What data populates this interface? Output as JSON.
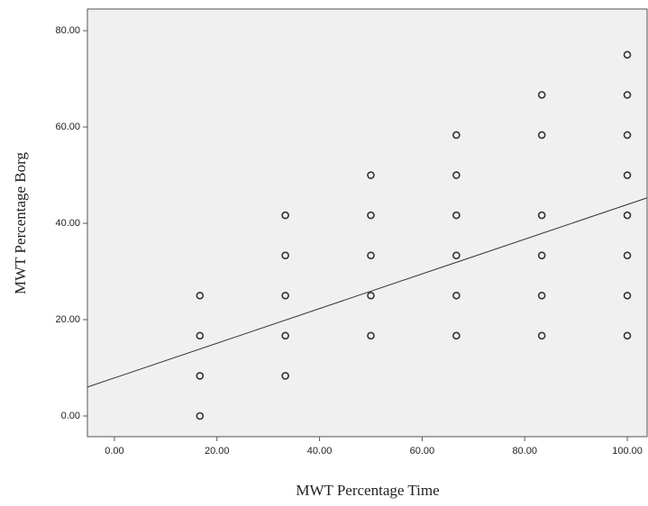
{
  "chart_data": {
    "type": "scatter",
    "x_label": "MWT Percentage Time",
    "y_label": "MWT Percentage Borg",
    "x": [
      16.67,
      16.67,
      16.67,
      16.67,
      33.33,
      33.33,
      33.33,
      33.33,
      33.33,
      50,
      50,
      50,
      50,
      50,
      66.67,
      66.67,
      66.67,
      66.67,
      66.67,
      66.67,
      83.33,
      83.33,
      83.33,
      83.33,
      83.33,
      83.33,
      100,
      100,
      100,
      100,
      100,
      100,
      100,
      100
    ],
    "values": [
      0,
      8.33,
      16.67,
      25,
      8.33,
      16.67,
      25,
      33.33,
      41.67,
      16.67,
      25,
      33.33,
      41.67,
      50,
      16.67,
      25,
      33.33,
      41.67,
      50,
      58.33,
      16.67,
      25,
      33.33,
      41.67,
      58.33,
      66.67,
      16.67,
      25,
      33.33,
      41.67,
      50,
      58.33,
      66.67,
      75
    ],
    "color": "#333333",
    "fit_line": {
      "intercept": 7.9,
      "slope": 0.36,
      "color": "#333333"
    },
    "xlim": [
      -5.26,
      103.86
    ],
    "ylim": [
      -4.3,
      84.5
    ],
    "xticks": [
      {
        "value": 0,
        "label": "0.00"
      },
      {
        "value": 20,
        "label": "20.00"
      },
      {
        "value": 40,
        "label": "40.00"
      },
      {
        "value": 60,
        "label": "60.00"
      },
      {
        "value": 80,
        "label": "80.00"
      },
      {
        "value": 100,
        "label": "100.00"
      }
    ],
    "yticks": [
      {
        "value": 0,
        "label": "0.00"
      },
      {
        "value": 20,
        "label": "20.00"
      },
      {
        "value": 40,
        "label": "40.00"
      },
      {
        "value": 60,
        "label": "60.00"
      },
      {
        "value": 80,
        "label": "80.00"
      }
    ]
  }
}
